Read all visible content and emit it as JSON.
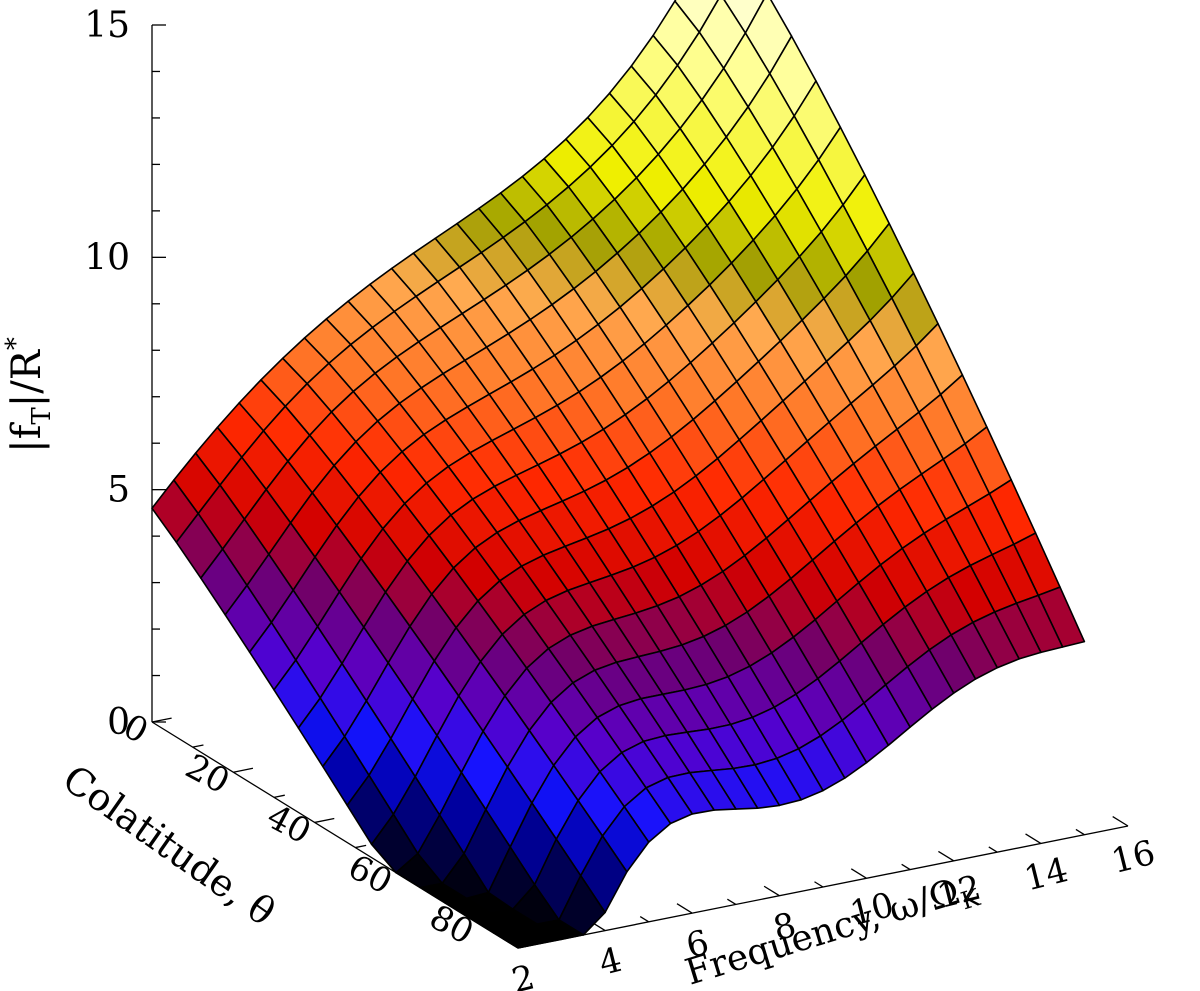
{
  "chart_data": {
    "type": "surface",
    "title": "",
    "zlabel": "|f_T|/R*",
    "zlabel_main": "|f",
    "zlabel_sub": "T",
    "zlabel_mid": "|/R",
    "zlabel_sup": "*",
    "xlabel": "Frequency, ω/Ω",
    "xlabel_sub": "K",
    "ylabel": "Colatitude, θ",
    "x_ticks": [
      "2",
      "4",
      "6",
      "8",
      "10",
      "12",
      "14",
      "16"
    ],
    "y_ticks": [
      "0",
      "20",
      "40",
      "60",
      "80"
    ],
    "z_ticks": [
      "0",
      "5",
      "10",
      "15"
    ],
    "xlim": [
      2,
      16
    ],
    "ylim": [
      0,
      90
    ],
    "zlim": [
      0,
      15
    ],
    "grid_x": [
      2,
      2.5,
      3,
      3.5,
      4,
      4.5,
      5,
      5.5,
      6,
      6.5,
      7,
      7.5,
      8,
      8.5,
      9,
      9.5,
      10,
      10.5,
      11,
      11.5,
      12,
      12.5,
      13,
      13.5,
      14,
      14.5,
      15
    ],
    "grid_y": [
      0,
      6,
      12,
      18,
      24,
      30,
      36,
      42,
      48,
      54,
      60,
      66,
      72,
      78,
      84,
      90
    ],
    "surface_description_points": [
      {
        "omega": 2,
        "theta": 0,
        "value": 4.6
      },
      {
        "omega": 2,
        "theta": 90,
        "value": 0.0
      },
      {
        "omega": 15,
        "theta": 0,
        "value": 14.5
      },
      {
        "omega": 15,
        "theta": 90,
        "value": 4.3
      },
      {
        "omega": 8,
        "theta": 0,
        "value": 9.0
      },
      {
        "omega": 8,
        "theta": 90,
        "value": 1.0
      }
    ]
  }
}
